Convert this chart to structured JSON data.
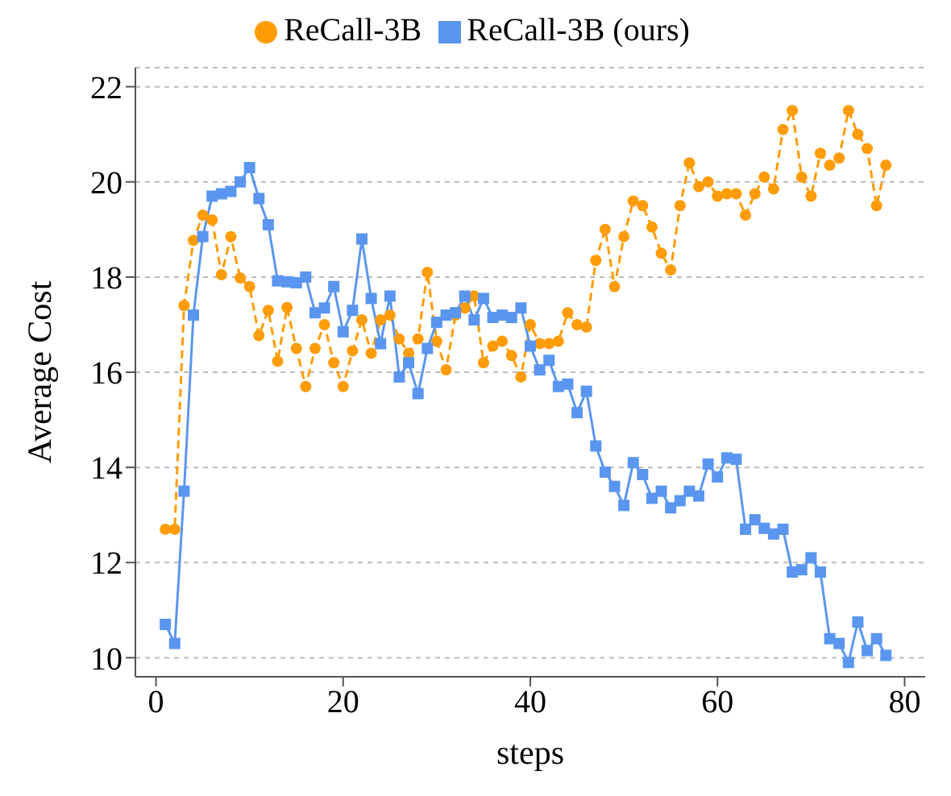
{
  "chart_data": {
    "type": "line",
    "xlabel": "steps",
    "ylabel": "Average Cost",
    "x": [
      1,
      2,
      3,
      4,
      5,
      6,
      7,
      8,
      9,
      10,
      11,
      12,
      13,
      14,
      15,
      16,
      17,
      18,
      19,
      20,
      21,
      22,
      23,
      24,
      25,
      26,
      27,
      28,
      29,
      30,
      31,
      32,
      33,
      34,
      35,
      36,
      37,
      38,
      39,
      40,
      41,
      42,
      43,
      44,
      45,
      46,
      47,
      48,
      49,
      50,
      51,
      52,
      53,
      54,
      55,
      56,
      57,
      58,
      59,
      60,
      61,
      62,
      63,
      64,
      65,
      66,
      67,
      68,
      69,
      70,
      71,
      72,
      73,
      74,
      75,
      76,
      77,
      78
    ],
    "series": [
      {
        "name": "ReCall-3B",
        "color": "#ff9c07",
        "marker": "circle",
        "line_style": "dashed",
        "values": [
          12.7,
          12.7,
          17.4,
          18.77,
          19.3,
          19.2,
          18.05,
          18.85,
          17.98,
          17.8,
          16.77,
          17.3,
          16.23,
          17.36,
          16.5,
          15.7,
          16.5,
          17.0,
          16.2,
          15.7,
          16.45,
          17.1,
          16.4,
          17.1,
          17.2,
          16.7,
          16.4,
          16.7,
          18.1,
          16.65,
          16.05,
          17.2,
          17.35,
          17.6,
          16.2,
          16.55,
          16.65,
          16.35,
          15.9,
          17.0,
          16.6,
          16.6,
          16.65,
          17.25,
          17.0,
          16.95,
          18.35,
          19.0,
          17.8,
          18.85,
          19.6,
          19.5,
          19.05,
          18.5,
          18.15,
          19.5,
          20.4,
          19.9,
          20.0,
          19.7,
          19.75,
          19.75,
          19.3,
          19.75,
          20.1,
          19.85,
          21.1,
          21.5,
          20.1,
          19.7,
          20.6,
          20.35,
          20.5,
          21.5,
          21.0,
          20.7,
          19.5,
          20.35
        ]
      },
      {
        "name": "ReCall-3B (ours)",
        "color": "#5a96ef",
        "marker": "square",
        "line_style": "solid",
        "values": [
          10.7,
          10.3,
          13.5,
          17.2,
          18.85,
          19.7,
          19.75,
          19.8,
          20.0,
          20.3,
          19.65,
          19.1,
          17.92,
          17.9,
          17.88,
          18.0,
          17.25,
          17.35,
          17.8,
          16.85,
          17.3,
          18.8,
          17.55,
          16.6,
          17.6,
          15.9,
          16.2,
          15.55,
          16.5,
          17.05,
          17.2,
          17.25,
          17.6,
          17.1,
          17.55,
          17.15,
          17.2,
          17.15,
          17.35,
          16.55,
          16.05,
          16.25,
          15.7,
          15.75,
          15.15,
          15.6,
          14.45,
          13.9,
          13.6,
          13.2,
          14.1,
          13.85,
          13.35,
          13.5,
          13.15,
          13.3,
          13.5,
          13.4,
          14.07,
          13.8,
          14.2,
          14.17,
          12.7,
          12.9,
          12.72,
          12.6,
          12.7,
          11.8,
          11.85,
          12.1,
          11.8,
          10.4,
          10.3,
          9.9,
          10.75,
          10.15,
          10.4,
          10.05
        ]
      }
    ],
    "xlim": [
      -2.2,
      82.2
    ],
    "xticks": [
      0,
      20,
      40,
      60,
      80
    ],
    "ylim": [
      9.6,
      22.4
    ],
    "yticks": [
      10,
      12,
      14,
      16,
      18,
      20,
      22
    ],
    "grid": "y",
    "legend": "top"
  }
}
